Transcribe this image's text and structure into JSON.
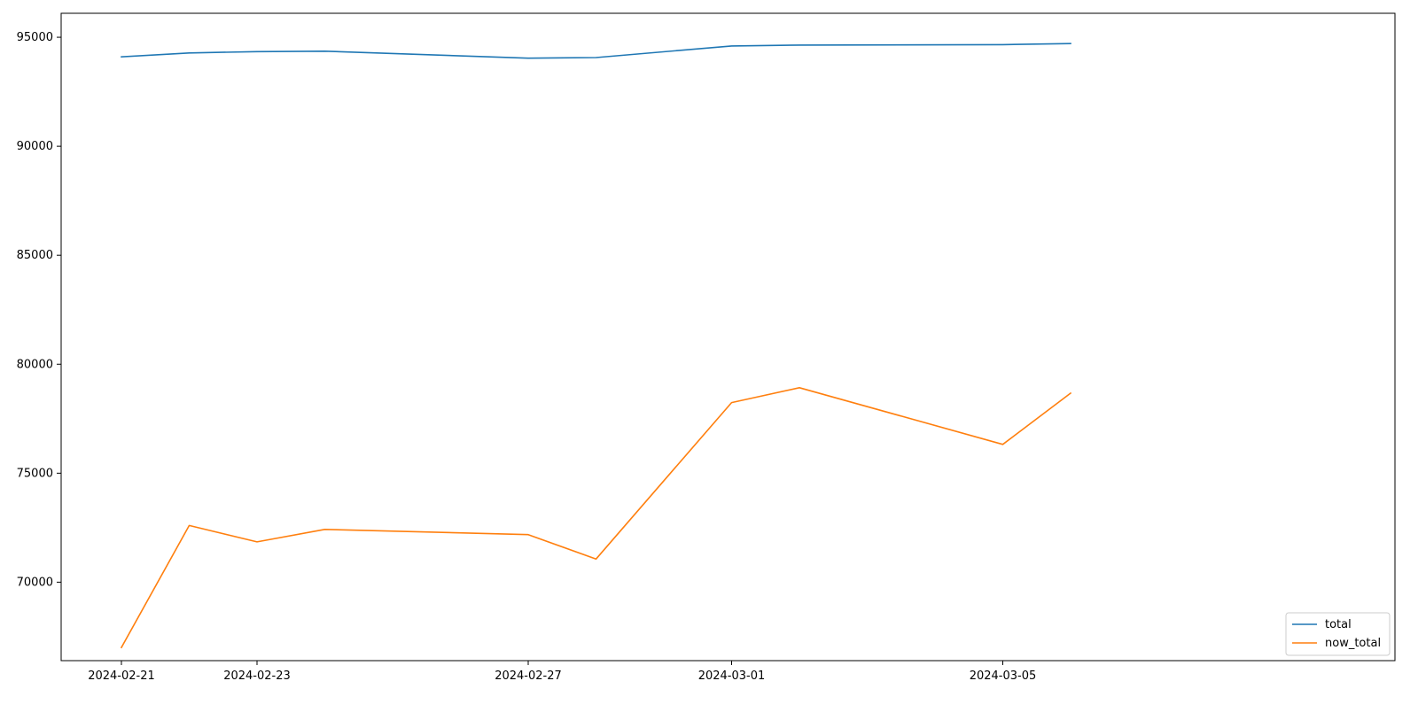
{
  "chart_data": {
    "type": "line",
    "x": [
      "2024-02-21",
      "2024-02-22",
      "2024-02-23",
      "2024-02-24",
      "2024-02-27",
      "2024-02-28",
      "2024-03-01",
      "2024-03-02",
      "2024-03-05",
      "2024-03-06"
    ],
    "series": [
      {
        "name": "total",
        "color": "#1f77b4",
        "values": [
          94100,
          94280,
          94340,
          94360,
          94040,
          94070,
          94600,
          94640,
          94660,
          94710
        ]
      },
      {
        "name": "now_total",
        "color": "#ff7f0e",
        "values": [
          67000,
          72600,
          71850,
          72420,
          72180,
          71060,
          78240,
          78920,
          76320,
          78670
        ]
      }
    ],
    "xticks": [
      "2024-02-21",
      "2024-02-23",
      "2024-02-27",
      "2024-03-01",
      "2024-03-05"
    ],
    "yticks": [
      70000,
      75000,
      80000,
      85000,
      90000,
      95000
    ],
    "ylim": [
      66400,
      96100
    ],
    "grid": false,
    "legend_position": "bottom-right",
    "title": "",
    "xlabel": "",
    "ylabel": ""
  }
}
